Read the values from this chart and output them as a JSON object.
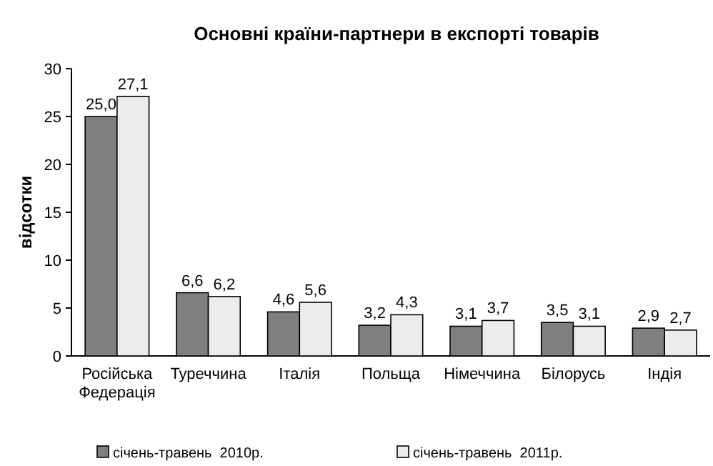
{
  "chart_data": {
    "type": "bar",
    "title": "Основні країни-партнери в експорті товарів",
    "ylabel": "відсотки",
    "categories": [
      "Російська Федерація",
      "Туреччина",
      "Італія",
      "Польща",
      "Німеччина",
      "Білорусь",
      "Індія"
    ],
    "series": [
      {
        "name": "січень-травень  2010р.",
        "color": "#7f7f7f",
        "values": [
          25.0,
          6.6,
          4.6,
          3.2,
          3.1,
          3.5,
          2.9
        ],
        "value_labels": [
          "25,0",
          "6,6",
          "4,6",
          "3,2",
          "3,1",
          "3,5",
          "2,9"
        ]
      },
      {
        "name": "січень-травень  2011р.",
        "color": "#ececec",
        "values": [
          27.1,
          6.2,
          5.6,
          4.3,
          3.7,
          3.1,
          2.7
        ],
        "value_labels": [
          "27,1",
          "6,2",
          "5,6",
          "4,3",
          "3,7",
          "3,1",
          "2,7"
        ]
      }
    ],
    "ylim": [
      0,
      30
    ],
    "yticks": [
      0,
      5,
      10,
      15,
      20,
      25,
      30
    ],
    "legend": "bottom"
  }
}
